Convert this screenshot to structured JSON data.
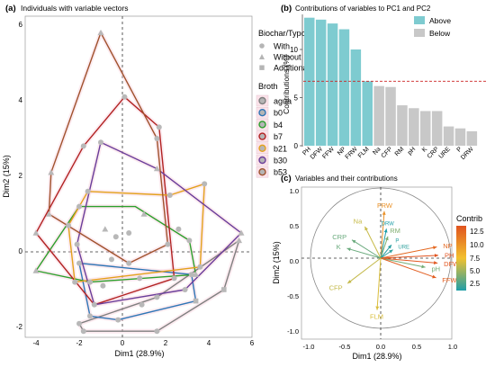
{
  "figure": {
    "panel_a": {
      "tag": "(a)",
      "title": "Individuals with variable vectors",
      "xlabel": "Dim1 (28.9%)",
      "ylabel": "Dim2 (15%)",
      "x_ticks": [
        "-4",
        "-2",
        "0",
        "2",
        "4",
        "6"
      ],
      "y_ticks": [
        "-2",
        "0",
        "2",
        "4",
        "6"
      ],
      "legend_shape_title": "Biochar/Typo",
      "legend_shapes": [
        {
          "label": "With",
          "shape": "circle"
        },
        {
          "label": "Without",
          "shape": "triangle"
        },
        {
          "label": "Additional",
          "shape": "square"
        }
      ],
      "legend_color_title": "Broth",
      "legend_colors": [
        {
          "label": "agua",
          "color": "#7f7f7f"
        },
        {
          "label": "b0",
          "color": "#2e75b6"
        },
        {
          "label": "b4",
          "color": "#2ca02c"
        },
        {
          "label": "b7",
          "color": "#b22222"
        },
        {
          "label": "b21",
          "color": "#e3a11b"
        },
        {
          "label": "b30",
          "color": "#6a3d9a"
        },
        {
          "label": "b53",
          "color": "#a0522d"
        }
      ]
    },
    "panel_b": {
      "tag": "(b)",
      "title": "Contributions of variables to PC1 and PC2",
      "ylabel": "Contributions (%)",
      "y_ticks": [
        "0",
        "5",
        "10"
      ],
      "legend": [
        {
          "label": "Above",
          "color": "#7ecbd0"
        },
        {
          "label": "Below",
          "color": "#c8c8c8"
        }
      ]
    },
    "panel_c": {
      "tag": "(c)",
      "title": "Variables and their contributions",
      "xlabel": "Dim1 (28.9%)",
      "ylabel": "Dim2 (15%)",
      "x_ticks": [
        "-1.0",
        "-0.5",
        "0.0",
        "0.5",
        "1.0"
      ],
      "y_ticks": [
        "-1.0",
        "-0.5",
        "0.0",
        "0.5",
        "1.0"
      ],
      "legend_title": "Contrib",
      "legend_ticks": [
        "12.5",
        "10.0",
        "7.5",
        "5.0",
        "2.5"
      ]
    }
  },
  "chart_data": [
    {
      "type": "scatter",
      "title": "Individuals with variable vectors",
      "xlabel": "Dim1 (28.9%)",
      "ylabel": "Dim2 (15%)",
      "xlim": [
        -4.4,
        6.1
      ],
      "ylim": [
        -2.4,
        6.3
      ],
      "series": [
        {
          "name": "agua",
          "color": "#7f7f7f",
          "hull": [
            [
              -2,
              -1.9
            ],
            [
              1.6,
              -1.2
            ],
            [
              5.4,
              0.3
            ],
            [
              4.7,
              -1.0
            ],
            [
              1.6,
              -2.1
            ],
            [
              -1.8,
              -2.1
            ]
          ]
        },
        {
          "name": "b0",
          "color": "#2e75b6",
          "hull": [
            [
              -2.0,
              -0.3
            ],
            [
              -1.5,
              -1.7
            ],
            [
              -0.2,
              -1.8
            ],
            [
              3.4,
              -1.3
            ],
            [
              3.2,
              -0.6
            ]
          ]
        },
        {
          "name": "b4",
          "color": "#2ca02c",
          "hull": [
            [
              -4.0,
              -0.5
            ],
            [
              -2.0,
              1.2
            ],
            [
              0.6,
              1.2
            ],
            [
              3.1,
              0.3
            ],
            [
              3.4,
              -0.6
            ],
            [
              -1.5,
              -0.8
            ]
          ]
        },
        {
          "name": "b7",
          "color": "#b22222",
          "hull": [
            [
              -4.0,
              0.5
            ],
            [
              -1.8,
              2.8
            ],
            [
              0.1,
              4.1
            ],
            [
              1.7,
              3.3
            ],
            [
              2.4,
              -0.7
            ],
            [
              -1.3,
              -1.4
            ]
          ]
        },
        {
          "name": "b21",
          "color": "#e3a11b",
          "hull": [
            [
              -2.5,
              0.7
            ],
            [
              -1.6,
              1.6
            ],
            [
              2.2,
              1.5
            ],
            [
              3.8,
              1.8
            ],
            [
              3.6,
              -0.4
            ],
            [
              -2.2,
              -0.8
            ]
          ]
        },
        {
          "name": "b30",
          "color": "#6a3d9a",
          "hull": [
            [
              -1.0,
              2.9
            ],
            [
              1.6,
              2.2
            ],
            [
              5.5,
              0.5
            ],
            [
              2.9,
              -1.0
            ],
            [
              -1.3,
              -1.4
            ],
            [
              -2.1,
              0.2
            ]
          ]
        },
        {
          "name": "b53",
          "color": "#a0522d",
          "hull": [
            [
              -3.3,
              2.1
            ],
            [
              -1.0,
              5.8
            ],
            [
              1.6,
              3.0
            ],
            [
              2.1,
              0.2
            ],
            [
              0.3,
              -0.3
            ],
            [
              -3.4,
              1.0
            ]
          ]
        }
      ],
      "points": [
        {
          "x": -4.0,
          "y": -0.5,
          "g": 2,
          "s": 1
        },
        {
          "x": -4.0,
          "y": 0.5,
          "g": 3,
          "s": 1
        },
        {
          "x": -3.3,
          "y": 2.1,
          "g": 6,
          "s": 1
        },
        {
          "x": -3.4,
          "y": 1.0,
          "g": 6,
          "s": 1
        },
        {
          "x": -2.5,
          "y": 0.7,
          "g": 4,
          "s": 0
        },
        {
          "x": -2.0,
          "y": 1.2,
          "g": 2,
          "s": 0
        },
        {
          "x": -1.6,
          "y": 1.6,
          "g": 4,
          "s": 0
        },
        {
          "x": -2.1,
          "y": 0.2,
          "g": 5,
          "s": 0
        },
        {
          "x": -1.0,
          "y": 5.8,
          "g": 6,
          "s": 1
        },
        {
          "x": -1.0,
          "y": 2.9,
          "g": 5,
          "s": 0
        },
        {
          "x": -1.8,
          "y": 2.8,
          "g": 3,
          "s": 0
        },
        {
          "x": 0.1,
          "y": 4.1,
          "g": 3,
          "s": 0
        },
        {
          "x": 1.6,
          "y": 3.0,
          "g": 6,
          "s": 0
        },
        {
          "x": 1.7,
          "y": 3.3,
          "g": 3,
          "s": 0
        },
        {
          "x": 1.6,
          "y": 2.2,
          "g": 5,
          "s": 1
        },
        {
          "x": 2.2,
          "y": 1.5,
          "g": 4,
          "s": 0
        },
        {
          "x": 3.8,
          "y": 1.8,
          "g": 4,
          "s": 0
        },
        {
          "x": 5.5,
          "y": 0.5,
          "g": 5,
          "s": 1
        },
        {
          "x": 5.4,
          "y": 0.3,
          "g": 0,
          "s": 1
        },
        {
          "x": -0.8,
          "y": 0.6,
          "g": 0,
          "s": 1
        },
        {
          "x": 0.3,
          "y": 0.5,
          "g": 0,
          "s": 0
        },
        {
          "x": -2.0,
          "y": -0.3,
          "g": 1,
          "s": 0
        },
        {
          "x": -1.5,
          "y": -1.7,
          "g": 1,
          "s": 0
        },
        {
          "x": -0.2,
          "y": -1.8,
          "g": 1,
          "s": 0
        },
        {
          "x": 3.4,
          "y": -1.3,
          "g": 1,
          "s": 2
        },
        {
          "x": 3.2,
          "y": -0.6,
          "g": 1,
          "s": 0
        },
        {
          "x": 3.4,
          "y": -0.6,
          "g": 2,
          "s": 1
        },
        {
          "x": 3.1,
          "y": 0.3,
          "g": 2,
          "s": 0
        },
        {
          "x": -1.5,
          "y": -0.8,
          "g": 2,
          "s": 0
        },
        {
          "x": 2.4,
          "y": -0.7,
          "g": 3,
          "s": 0
        },
        {
          "x": -1.3,
          "y": -1.4,
          "g": 3,
          "s": 0
        },
        {
          "x": 3.6,
          "y": -0.4,
          "g": 4,
          "s": 0
        },
        {
          "x": -2.2,
          "y": -0.8,
          "g": 4,
          "s": 0
        },
        {
          "x": 2.9,
          "y": -1.0,
          "g": 5,
          "s": 0
        },
        {
          "x": 2.1,
          "y": 0.2,
          "g": 6,
          "s": 0
        },
        {
          "x": 0.3,
          "y": -0.3,
          "g": 6,
          "s": 0
        },
        {
          "x": -2.0,
          "y": -1.9,
          "g": 0,
          "s": 0
        },
        {
          "x": 1.6,
          "y": -1.2,
          "g": 0,
          "s": 0
        },
        {
          "x": 4.7,
          "y": -1.0,
          "g": 0,
          "s": 2
        },
        {
          "x": 1.6,
          "y": -2.1,
          "g": 0,
          "s": 0
        },
        {
          "x": -1.8,
          "y": -2.1,
          "g": 0,
          "s": 0
        },
        {
          "x": -0.9,
          "y": -0.9,
          "g": 1,
          "s": 0
        },
        {
          "x": 0.8,
          "y": -0.7,
          "g": 2,
          "s": 0
        },
        {
          "x": -0.5,
          "y": -0.2,
          "g": 4,
          "s": 0
        },
        {
          "x": 1.0,
          "y": 1.0,
          "g": 0,
          "s": 1
        },
        {
          "x": -0.3,
          "y": 0.4,
          "g": 3,
          "s": 0
        },
        {
          "x": 0.9,
          "y": -1.4,
          "g": 1,
          "s": 0
        },
        {
          "x": 2.6,
          "y": 0.6,
          "g": 5,
          "s": 0
        }
      ]
    },
    {
      "type": "bar",
      "title": "Contributions of variables to PC1 and PC2",
      "ylabel": "Contributions (%)",
      "ylim": [
        0,
        14
      ],
      "reference_line": 6.7,
      "categories": [
        "PH",
        "DFW",
        "FFW",
        "NP",
        "FRW",
        "FLM",
        "Na",
        "CFP",
        "RM",
        "pH",
        "K",
        "CRP",
        "URE",
        "P",
        "DRW"
      ],
      "values": [
        13.3,
        13.1,
        12.7,
        12.1,
        10.0,
        6.7,
        6.2,
        6.1,
        4.2,
        3.9,
        3.6,
        3.6,
        2.0,
        1.8,
        1.5
      ],
      "groups": [
        "Above",
        "Above",
        "Above",
        "Above",
        "Above",
        "Above",
        "Below",
        "Below",
        "Below",
        "Below",
        "Below",
        "Below",
        "Below",
        "Below",
        "Below"
      ]
    },
    {
      "type": "scatter",
      "title": "Variables and their contributions",
      "xlabel": "Dim1 (28.9%)",
      "ylabel": "Dim2 (15%)",
      "xlim": [
        -1.15,
        1.1
      ],
      "ylim": [
        -1.1,
        1.1
      ],
      "color_scale": [
        "#1f9ea8",
        "#f2c12e",
        "#e0531f"
      ],
      "contrib_range": [
        1.5,
        13.3
      ],
      "vectors": [
        {
          "name": "FRW",
          "x": 0.05,
          "y": 0.67,
          "contrib": 10.0
        },
        {
          "name": "Na",
          "x": -0.22,
          "y": 0.45,
          "contrib": 6.2
        },
        {
          "name": "DRW",
          "x": 0.08,
          "y": 0.42,
          "contrib": 1.5
        },
        {
          "name": "RM",
          "x": 0.1,
          "y": 0.31,
          "contrib": 4.2
        },
        {
          "name": "CRP",
          "x": -0.4,
          "y": 0.26,
          "contrib": 3.6
        },
        {
          "name": "P",
          "x": 0.15,
          "y": 0.19,
          "contrib": 1.8
        },
        {
          "name": "K",
          "x": -0.47,
          "y": 0.14,
          "contrib": 3.6
        },
        {
          "name": "URE",
          "x": 0.17,
          "y": 0.12,
          "contrib": 2.0
        },
        {
          "name": "NP",
          "x": 0.78,
          "y": 0.16,
          "contrib": 12.1
        },
        {
          "name": "PH",
          "x": 0.8,
          "y": 0.04,
          "contrib": 13.3
        },
        {
          "name": "DFW",
          "x": 0.79,
          "y": -0.07,
          "contrib": 13.1
        },
        {
          "name": "pH",
          "x": 0.62,
          "y": -0.13,
          "contrib": 3.9
        },
        {
          "name": "FFW",
          "x": 0.77,
          "y": -0.28,
          "contrib": 12.7
        },
        {
          "name": "CFP",
          "x": -0.46,
          "y": -0.36,
          "contrib": 6.1
        },
        {
          "name": "FLM",
          "x": -0.05,
          "y": -0.74,
          "contrib": 6.7
        }
      ]
    }
  ]
}
